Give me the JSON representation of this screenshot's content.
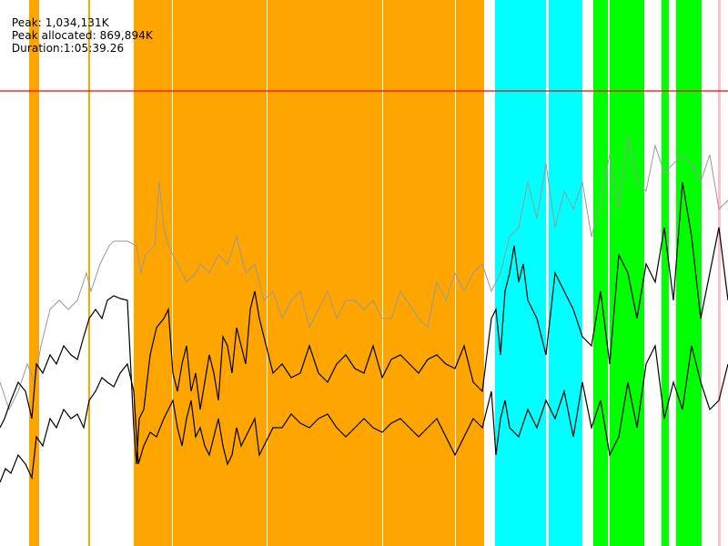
{
  "header": {
    "peak": "Peak: 1,034,131K",
    "peak_allocated": "Peak allocated: 869,894K",
    "duration": "Duration:1:05:39.26"
  },
  "chart_data": {
    "type": "line",
    "title": "",
    "xlabel": "",
    "ylabel": "",
    "grid": false,
    "legend": "none",
    "peak_line_color": "#ff0000",
    "band_colors": [
      "#ffa500",
      "#00ffff",
      "#00ff00",
      "#ffc0cb"
    ],
    "bands": [
      {
        "color": "#ffa500",
        "x_segments": [
          [
            32,
            43
          ],
          [
            97,
            99
          ],
          [
            147,
            189
          ],
          [
            190,
            293
          ],
          [
            294,
            420
          ],
          [
            421,
            500
          ],
          [
            501,
            532
          ]
        ]
      },
      {
        "color": "#00ffff",
        "x_segments": [
          [
            544,
            600
          ],
          [
            603,
            640
          ]
        ]
      },
      {
        "color": "#00ff00",
        "x_segments": [
          [
            652,
            668
          ],
          [
            670,
            708
          ],
          [
            727,
            735
          ],
          [
            743,
            771
          ]
        ]
      },
      {
        "color": "#ffc0cb",
        "x_segments": [
          [
            789,
            792
          ]
        ]
      }
    ],
    "series": [
      {
        "color": "#999999",
        "x": [
          0,
          10,
          20,
          30,
          38,
          45,
          55,
          65,
          75,
          85,
          95,
          100,
          110,
          120,
          125,
          130,
          140,
          150,
          155,
          160,
          170,
          175,
          180,
          185,
          190,
          195,
          200,
          205,
          210,
          215,
          220,
          230,
          240,
          250,
          260,
          270,
          280,
          290,
          300,
          310,
          320,
          330,
          340,
          350,
          360,
          370,
          380,
          390,
          400,
          410,
          420,
          430,
          440,
          450,
          460,
          470,
          480,
          490,
          500,
          510,
          520,
          530,
          540,
          550,
          560,
          570,
          580,
          590,
          600,
          610,
          620,
          630,
          640,
          650,
          660,
          670,
          680,
          690,
          700,
          710,
          720,
          730,
          740,
          750,
          760,
          770,
          780,
          790,
          800
        ],
        "values": [
          420,
          450,
          430,
          400,
          420,
          380,
          340,
          330,
          340,
          330,
          300,
          320,
          290,
          270,
          265,
          265,
          265,
          270,
          300,
          280,
          270,
          200,
          250,
          270,
          280,
          290,
          300,
          310,
          305,
          300,
          290,
          300,
          280,
          290,
          260,
          300,
          290,
          330,
          320,
          350,
          330,
          320,
          360,
          340,
          320,
          350,
          330,
          330,
          340,
          330,
          350,
          350,
          320,
          335,
          350,
          360,
          310,
          330,
          300,
          320,
          300,
          290,
          320,
          300,
          260,
          250,
          200,
          240,
          180,
          250,
          210,
          230,
          200,
          260,
          220,
          170,
          230,
          150,
          200,
          210,
          160,
          190,
          180,
          170,
          180,
          200,
          170,
          230,
          220
        ]
      },
      {
        "color": "#000000",
        "x": [
          0,
          5,
          12,
          20,
          28,
          35,
          40,
          47,
          55,
          62,
          70,
          78,
          85,
          92,
          98,
          105,
          112,
          118,
          125,
          132,
          140,
          147,
          150,
          153,
          158,
          165,
          172,
          180,
          185,
          190,
          195,
          200,
          205,
          210,
          215,
          220,
          225,
          230,
          235,
          240,
          245,
          250,
          255,
          260,
          265,
          270,
          275,
          280,
          285,
          290,
          300,
          310,
          320,
          330,
          340,
          350,
          360,
          370,
          380,
          390,
          400,
          410,
          420,
          430,
          440,
          450,
          460,
          470,
          480,
          490,
          500,
          510,
          520,
          530,
          540,
          545,
          550,
          555,
          560,
          565,
          570,
          575,
          580,
          590,
          600,
          610,
          620,
          630,
          640,
          650,
          660,
          670,
          680,
          690,
          700,
          710,
          720,
          730,
          740,
          750,
          760,
          770,
          780,
          790,
          800
        ],
        "values": [
          470,
          460,
          440,
          420,
          430,
          460,
          400,
          410,
          390,
          400,
          380,
          390,
          395,
          370,
          350,
          340,
          350,
          330,
          325,
          328,
          330,
          470,
          510,
          460,
          450,
          390,
          360,
          350,
          340,
          410,
          430,
          400,
          380,
          430,
          410,
          450,
          420,
          390,
          410,
          440,
          370,
          380,
          410,
          360,
          380,
          400,
          340,
          320,
          350,
          370,
          410,
          400,
          415,
          410,
          380,
          410,
          420,
          400,
          390,
          405,
          410,
          380,
          415,
          395,
          390,
          400,
          410,
          395,
          390,
          400,
          405,
          380,
          420,
          430,
          350,
          340,
          390,
          320,
          300,
          270,
          310,
          290,
          330,
          350,
          390,
          300,
          320,
          340,
          370,
          380,
          320,
          400,
          280,
          300,
          350,
          290,
          310,
          250,
          330,
          200,
          260,
          350,
          300,
          250,
          330
        ]
      },
      {
        "color": "#000000",
        "x": [
          0,
          6,
          12,
          20,
          28,
          35,
          40,
          47,
          55,
          62,
          70,
          78,
          85,
          92,
          98,
          105,
          112,
          118,
          125,
          132,
          140,
          147,
          152,
          158,
          165,
          172,
          180,
          185,
          190,
          195,
          200,
          205,
          210,
          215,
          220,
          225,
          230,
          235,
          240,
          245,
          250,
          255,
          260,
          265,
          270,
          275,
          280,
          285,
          290,
          300,
          310,
          320,
          330,
          340,
          350,
          360,
          370,
          380,
          390,
          400,
          410,
          420,
          430,
          440,
          450,
          460,
          470,
          480,
          490,
          500,
          510,
          520,
          530,
          540,
          545,
          550,
          555,
          560,
          570,
          580,
          590,
          600,
          610,
          620,
          630,
          640,
          650,
          660,
          670,
          680,
          690,
          700,
          710,
          720,
          730,
          740,
          750,
          760,
          770,
          780,
          790,
          800
        ],
        "values": [
          530,
          515,
          520,
          500,
          510,
          525,
          480,
          490,
          460,
          470,
          450,
          460,
          455,
          470,
          440,
          430,
          415,
          420,
          425,
          410,
          400,
          430,
          510,
          490,
          475,
          480,
          460,
          450,
          440,
          470,
          490,
          460,
          440,
          480,
          470,
          490,
          500,
          480,
          460,
          490,
          510,
          500,
          470,
          490,
          480,
          470,
          460,
          500,
          490,
          470,
          470,
          455,
          465,
          470,
          460,
          455,
          470,
          480,
          470,
          460,
          470,
          475,
          465,
          460,
          470,
          480,
          470,
          460,
          480,
          500,
          480,
          460,
          470,
          430,
          500,
          460,
          440,
          470,
          480,
          450,
          470,
          440,
          460,
          430,
          480,
          420,
          470,
          440,
          500,
          480,
          420,
          470,
          400,
          380,
          460,
          420,
          450,
          380,
          420,
          450,
          440,
          400
        ]
      }
    ]
  }
}
